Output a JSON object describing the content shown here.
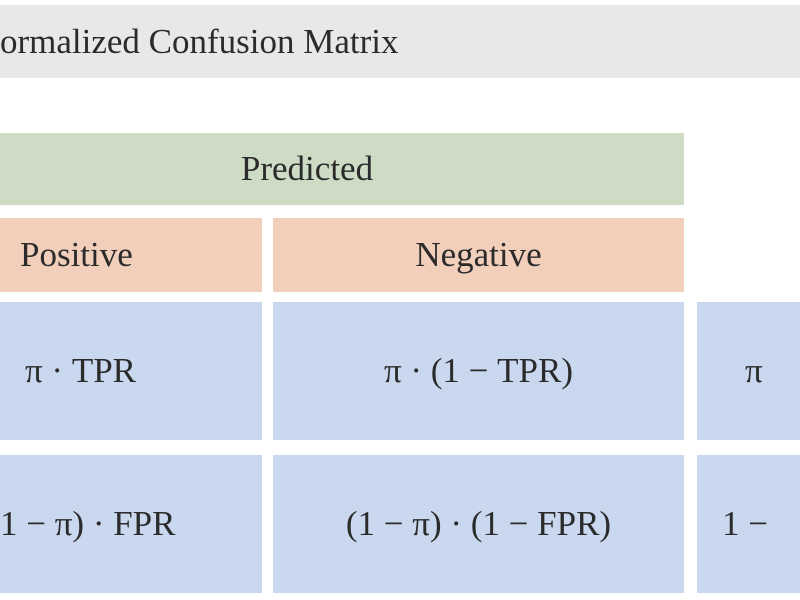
{
  "title": "ormalized Confusion Matrix",
  "header": {
    "predicted": "Predicted",
    "columns": [
      "Positive",
      "Negative"
    ]
  },
  "rows": [
    [
      "π · TPR",
      "π · (1 − TPR)",
      "π"
    ],
    [
      "1 − π) · FPR",
      "(1 − π) · (1 − FPR)",
      "1 −"
    ]
  ]
}
